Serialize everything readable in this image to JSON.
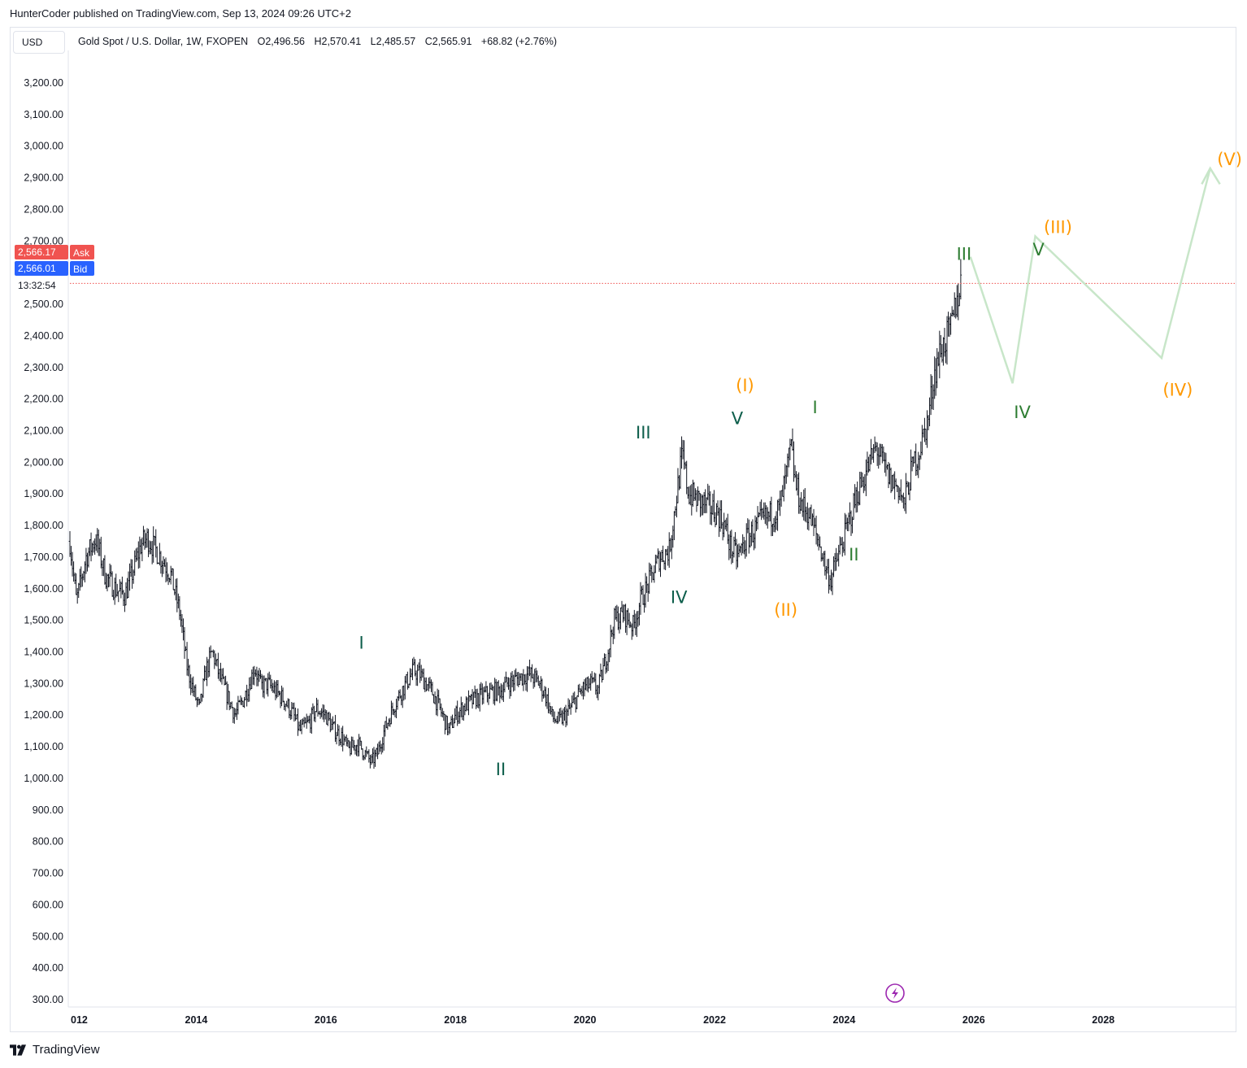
{
  "header": {
    "published_by": "HunterCoder published on TradingView.com, Sep 13, 2024 09:26 UTC+2"
  },
  "toolbar": {
    "currency_label": "USD"
  },
  "symbol_info": {
    "name": "Gold Spot / U.S. Dollar, 1W, FXOPEN",
    "open": "O2,496.56",
    "high": "H2,570.41",
    "low": "L2,485.57",
    "close": "C2,565.91",
    "change": "+68.82 (+2.76%)"
  },
  "price_tags": {
    "ask_value": "2,566.17",
    "ask_label": "Ask",
    "bid_value": "2,566.01",
    "bid_label": "Bid",
    "countdown": "13:32:54",
    "ask_color": "#f05350",
    "bid_color": "#2962ff"
  },
  "brand": {
    "logo_text": "TradingView",
    "logo_icon": "tradingview-logo-icon"
  },
  "colors": {
    "candle": "#131722",
    "green_label": "#2e7d32",
    "teal_label": "#0d5e4b",
    "orange_label": "#ff9800",
    "projection": "#c8e6c9",
    "priceline": "#f05350",
    "lightning": "#9c27b0"
  },
  "chart_data": {
    "type": "ohlc",
    "title": "Gold Spot / U.S. Dollar, 1W, FXOPEN",
    "xlabel": "",
    "ylabel": "",
    "ylim": [
      300,
      3200
    ],
    "xlim": [
      2012.0,
      2030.6
    ],
    "grid": false,
    "y_ticks": [
      "3,200.00",
      "3,100.00",
      "3,000.00",
      "2,900.00",
      "2,800.00",
      "2,700.00",
      "2,500.00",
      "2,400.00",
      "2,300.00",
      "2,200.00",
      "2,100.00",
      "2,000.00",
      "1,900.00",
      "1,800.00",
      "1,700.00",
      "1,600.00",
      "1,500.00",
      "1,400.00",
      "1,300.00",
      "1,200.00",
      "1,100.00",
      "1,000.00",
      "900.00",
      "800.00",
      "700.00",
      "600.00",
      "500.00",
      "400.00",
      "300.00"
    ],
    "y_tick_values": [
      3200,
      3100,
      3000,
      2900,
      2800,
      2700,
      2500,
      2400,
      2300,
      2200,
      2100,
      2000,
      1900,
      1800,
      1700,
      1600,
      1500,
      1400,
      1300,
      1200,
      1100,
      1000,
      900,
      800,
      700,
      600,
      500,
      400,
      300
    ],
    "x_ticks": [
      "012",
      "2014",
      "2016",
      "2018",
      "2020",
      "2022",
      "2024",
      "2026",
      "2028"
    ],
    "x_tick_values": [
      2012.15,
      2014.0,
      2016.0,
      2018.0,
      2020.0,
      2022.0,
      2024.0,
      2026.0,
      2028.0
    ],
    "price_path": [
      [
        2012.05,
        1750
      ],
      [
        2012.15,
        1560
      ],
      [
        2012.3,
        1700
      ],
      [
        2012.45,
        1760
      ],
      [
        2012.6,
        1640
      ],
      [
        2012.75,
        1600
      ],
      [
        2012.9,
        1580
      ],
      [
        2013.0,
        1640
      ],
      [
        2013.15,
        1740
      ],
      [
        2013.25,
        1760
      ],
      [
        2013.45,
        1700
      ],
      [
        2013.6,
        1650
      ],
      [
        2013.75,
        1520
      ],
      [
        2013.85,
        1360
      ],
      [
        2013.95,
        1280
      ],
      [
        2014.05,
        1220
      ],
      [
        2014.15,
        1340
      ],
      [
        2014.25,
        1400
      ],
      [
        2014.35,
        1330
      ],
      [
        2014.5,
        1250
      ],
      [
        2014.6,
        1200
      ],
      [
        2014.75,
        1260
      ],
      [
        2014.9,
        1350
      ],
      [
        2015.0,
        1290
      ],
      [
        2015.1,
        1300
      ],
      [
        2015.2,
        1280
      ],
      [
        2015.35,
        1250
      ],
      [
        2015.5,
        1200
      ],
      [
        2015.6,
        1150
      ],
      [
        2015.75,
        1180
      ],
      [
        2015.85,
        1220
      ],
      [
        2016.0,
        1200
      ],
      [
        2016.1,
        1160
      ],
      [
        2016.25,
        1130
      ],
      [
        2016.35,
        1090
      ],
      [
        2016.5,
        1110
      ],
      [
        2016.6,
        1080
      ],
      [
        2016.7,
        1050
      ],
      [
        2016.8,
        1080
      ],
      [
        2016.9,
        1150
      ],
      [
        2017.05,
        1230
      ],
      [
        2017.15,
        1270
      ],
      [
        2017.35,
        1340
      ],
      [
        2017.45,
        1330
      ],
      [
        2017.55,
        1300
      ],
      [
        2017.65,
        1270
      ],
      [
        2017.8,
        1200
      ],
      [
        2017.9,
        1150
      ],
      [
        2018.0,
        1200
      ],
      [
        2018.15,
        1230
      ],
      [
        2018.3,
        1250
      ],
      [
        2018.5,
        1270
      ],
      [
        2018.7,
        1280
      ],
      [
        2018.8,
        1300
      ],
      [
        2019.0,
        1320
      ],
      [
        2019.15,
        1330
      ],
      [
        2019.3,
        1300
      ],
      [
        2019.4,
        1260
      ],
      [
        2019.5,
        1190
      ],
      [
        2019.6,
        1180
      ],
      [
        2019.7,
        1200
      ],
      [
        2019.8,
        1230
      ],
      [
        2019.95,
        1280
      ],
      [
        2020.1,
        1300
      ],
      [
        2020.2,
        1280
      ],
      [
        2020.35,
        1400
      ],
      [
        2020.45,
        1500
      ],
      [
        2020.6,
        1520
      ],
      [
        2020.75,
        1480
      ],
      [
        2020.85,
        1560
      ],
      [
        2020.95,
        1600
      ],
      [
        2021.05,
        1650
      ],
      [
        2021.15,
        1700
      ],
      [
        2021.3,
        1720
      ],
      [
        2021.45,
        1950
      ],
      [
        2021.5,
        2020
      ],
      [
        2021.6,
        1900
      ],
      [
        2021.75,
        1880
      ],
      [
        2021.9,
        1860
      ],
      [
        2022.05,
        1840
      ],
      [
        2022.15,
        1800
      ],
      [
        2022.25,
        1730
      ],
      [
        2022.35,
        1700
      ],
      [
        2022.5,
        1760
      ],
      [
        2022.6,
        1780
      ],
      [
        2022.7,
        1810
      ],
      [
        2022.85,
        1830
      ],
      [
        2023.0,
        1850
      ],
      [
        2023.1,
        1950
      ],
      [
        2023.18,
        2050
      ],
      [
        2023.25,
        1930
      ],
      [
        2023.35,
        1860
      ],
      [
        2023.45,
        1840
      ],
      [
        2023.55,
        1780
      ],
      [
        2023.65,
        1720
      ],
      [
        2023.72,
        1660
      ],
      [
        2023.8,
        1630
      ],
      [
        2023.9,
        1700
      ],
      [
        2024.0,
        1760
      ],
      [
        2024.1,
        1830
      ],
      [
        2024.2,
        1900
      ],
      [
        2024.3,
        1950
      ],
      [
        2024.4,
        2000
      ],
      [
        2024.5,
        2050
      ],
      [
        2024.6,
        1990
      ],
      [
        2024.72,
        1940
      ],
      [
        2024.85,
        1920
      ],
      [
        2024.92,
        1860
      ],
      [
        2025.0,
        1940
      ],
      [
        2025.08,
        2000
      ],
      [
        2025.15,
        2030
      ],
      [
        2025.22,
        2080
      ],
      [
        2025.3,
        2140
      ],
      [
        2025.38,
        2270
      ],
      [
        2025.45,
        2330
      ],
      [
        2025.55,
        2380
      ],
      [
        2025.65,
        2420
      ],
      [
        2025.72,
        2500
      ],
      [
        2025.8,
        2566
      ]
    ],
    "projection_path": [
      [
        2025.95,
        2650
      ],
      [
        2026.6,
        2250
      ],
      [
        2026.95,
        2715
      ],
      [
        2028.9,
        2330
      ],
      [
        2029.65,
        2930
      ]
    ],
    "projection_arrow": [
      [
        2029.52,
        2880
      ],
      [
        2029.65,
        2930
      ],
      [
        2029.8,
        2880
      ]
    ],
    "wave_labels": [
      {
        "text": "I",
        "x": 2016.55,
        "y": 1410,
        "color": "teal"
      },
      {
        "text": "II",
        "x": 2018.7,
        "y": 1010,
        "color": "teal"
      },
      {
        "text": "III",
        "x": 2020.9,
        "y": 2075,
        "color": "teal"
      },
      {
        "text": "IV",
        "x": 2021.45,
        "y": 1555,
        "color": "teal"
      },
      {
        "text": "V",
        "x": 2022.35,
        "y": 2120,
        "color": "teal"
      },
      {
        "text": "(I)",
        "x": 2022.47,
        "y": 2225,
        "color": "orange"
      },
      {
        "text": "(II)",
        "x": 2023.1,
        "y": 1515,
        "color": "orange"
      },
      {
        "text": "I",
        "x": 2023.55,
        "y": 2155,
        "color": "green"
      },
      {
        "text": "II",
        "x": 2024.15,
        "y": 1690,
        "color": "green"
      },
      {
        "text": "III",
        "x": 2025.85,
        "y": 2640,
        "color": "green"
      },
      {
        "text": "IV",
        "x": 2026.75,
        "y": 2140,
        "color": "green"
      },
      {
        "text": "V",
        "x": 2027.0,
        "y": 2655,
        "color": "green"
      },
      {
        "text": "(III)",
        "x": 2027.3,
        "y": 2725,
        "color": "orange"
      },
      {
        "text": "(IV)",
        "x": 2029.15,
        "y": 2210,
        "color": "orange"
      },
      {
        "text": "(V)",
        "x": 2029.95,
        "y": 2940,
        "color": "orange"
      }
    ],
    "last_price": 2566
  }
}
